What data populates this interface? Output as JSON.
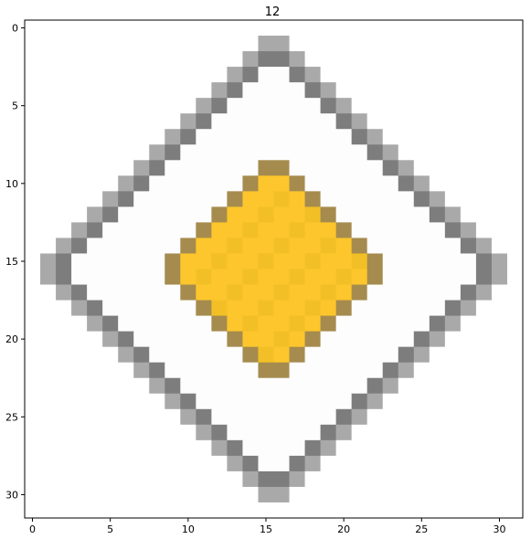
{
  "title": "12",
  "chart_data": {
    "type": "heatmap",
    "grid_size": 32,
    "title": "12",
    "x_ticks": [
      "0",
      "5",
      "10",
      "15",
      "20",
      "25",
      "30"
    ],
    "y_ticks": [
      "0",
      "5",
      "10",
      "15",
      "20",
      "25",
      "30"
    ],
    "x_range": [
      -0.5,
      31.5
    ],
    "y_range": [
      -0.5,
      31.5
    ],
    "y_inverted": true,
    "description_of_content": "pixelated diamond road sign: yellow diamond inside white diamond with gray border",
    "colors": {
      "background": "#ffffff",
      "gray_border": "#7d7d7d",
      "gray_light": "#a9a9a9",
      "white_fill": "#fdfdfd",
      "yellow": "#fcc62c",
      "yellow_dark": "#f2c026",
      "olive_edge": "#a58b4e"
    }
  }
}
